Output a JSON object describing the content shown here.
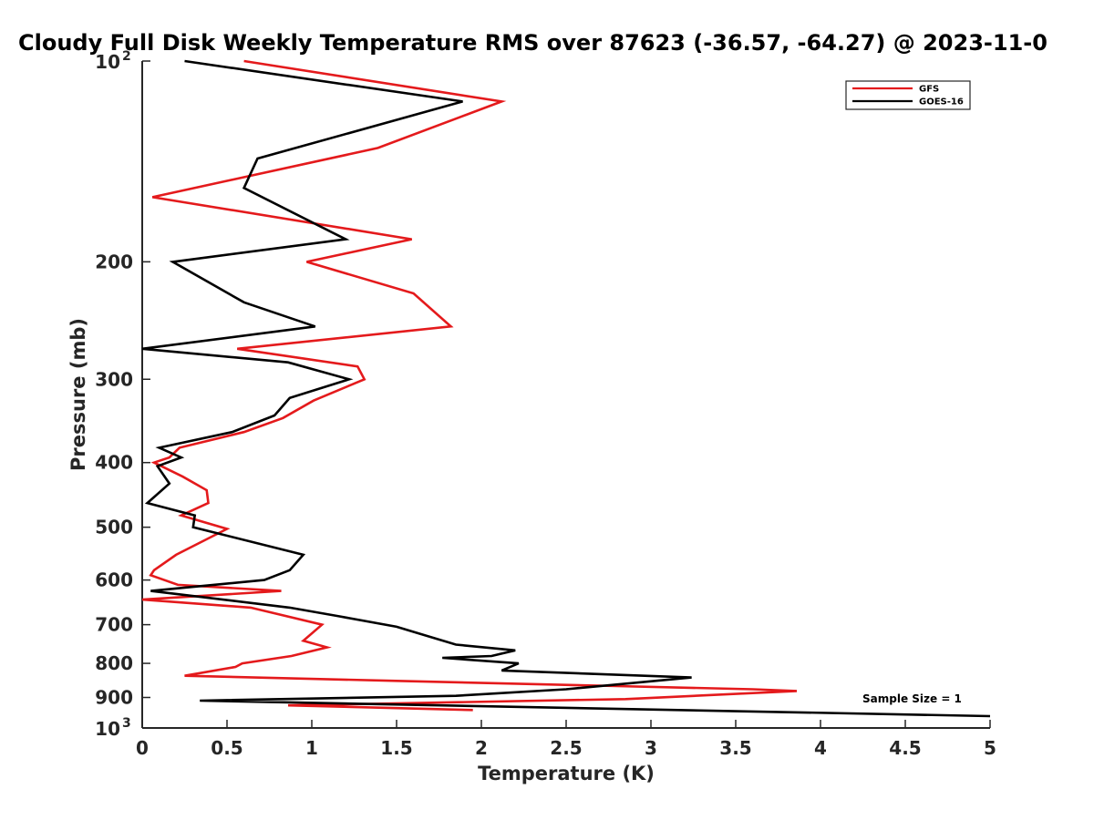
{
  "chart_data": {
    "type": "line",
    "title": "Cloudy Full Disk Weekly Temperature RMS over 87623 (-36.57, -64.27) @ 2023-11-0",
    "xlabel": "Temperature (K)",
    "ylabel": "Pressure (mb)",
    "xlim": [
      0,
      5
    ],
    "ylim": [
      100,
      1000
    ],
    "y_scale": "log",
    "y_reversed": true,
    "grid": false,
    "legend_position": "top-right",
    "x_ticks": [
      "0",
      "0.5",
      "1",
      "1.5",
      "2",
      "2.5",
      "3",
      "3.5",
      "4",
      "4.5",
      "5"
    ],
    "y_ticks": [
      {
        "value": 100,
        "base": "10",
        "exp": "2"
      },
      {
        "value": 200,
        "label": "200"
      },
      {
        "value": 300,
        "label": "300"
      },
      {
        "value": 400,
        "label": "400"
      },
      {
        "value": 500,
        "label": "500"
      },
      {
        "value": 600,
        "label": "600"
      },
      {
        "value": 700,
        "label": "700"
      },
      {
        "value": 800,
        "label": "800"
      },
      {
        "value": 900,
        "label": "900"
      },
      {
        "value": 1000,
        "base": "10",
        "exp": "3"
      }
    ],
    "annotation": "Sample Size = 1",
    "series": [
      {
        "name": "GFS",
        "color": "#e41a1c",
        "points": [
          [
            0.6,
            100
          ],
          [
            2.12,
            115
          ],
          [
            1.39,
            135
          ],
          [
            0.06,
            160
          ],
          [
            1.59,
            185
          ],
          [
            0.97,
            200
          ],
          [
            1.6,
            223
          ],
          [
            1.82,
            250
          ],
          [
            0.56,
            270
          ],
          [
            1.27,
            287
          ],
          [
            1.31,
            300
          ],
          [
            1.01,
            323
          ],
          [
            0.83,
            343
          ],
          [
            0.6,
            360
          ],
          [
            0.22,
            380
          ],
          [
            0.16,
            393
          ],
          [
            0.07,
            400
          ],
          [
            0.24,
            420
          ],
          [
            0.38,
            440
          ],
          [
            0.39,
            460
          ],
          [
            0.23,
            480
          ],
          [
            0.5,
            503
          ],
          [
            0.2,
            550
          ],
          [
            0.07,
            580
          ],
          [
            0.05,
            590
          ],
          [
            0.21,
            610
          ],
          [
            0.82,
            623
          ],
          [
            0.0,
            642
          ],
          [
            0.64,
            660
          ],
          [
            1.06,
            700
          ],
          [
            0.95,
            740
          ],
          [
            1.09,
            757
          ],
          [
            0.88,
            780
          ],
          [
            0.59,
            800
          ],
          [
            0.55,
            810
          ],
          [
            0.25,
            835
          ],
          [
            1.5,
            850
          ],
          [
            3.6,
            875
          ],
          [
            3.86,
            880
          ],
          [
            2.85,
            905
          ],
          [
            0.86,
            925
          ],
          [
            1.95,
            940
          ]
        ]
      },
      {
        "name": "GOES-16",
        "color": "#000000",
        "points": [
          [
            0.25,
            100
          ],
          [
            1.89,
            115
          ],
          [
            0.68,
            140
          ],
          [
            0.6,
            155
          ],
          [
            1.2,
            185
          ],
          [
            0.18,
            200
          ],
          [
            0.6,
            230
          ],
          [
            1.02,
            250
          ],
          [
            0.0,
            270
          ],
          [
            0.86,
            283
          ],
          [
            1.22,
            300
          ],
          [
            0.87,
            320
          ],
          [
            0.78,
            340
          ],
          [
            0.53,
            360
          ],
          [
            0.1,
            380
          ],
          [
            0.23,
            393
          ],
          [
            0.09,
            405
          ],
          [
            0.16,
            430
          ],
          [
            0.03,
            460
          ],
          [
            0.31,
            480
          ],
          [
            0.3,
            500
          ],
          [
            0.95,
            550
          ],
          [
            0.87,
            580
          ],
          [
            0.72,
            600
          ],
          [
            0.05,
            623
          ],
          [
            0.87,
            660
          ],
          [
            1.16,
            680
          ],
          [
            1.5,
            705
          ],
          [
            1.62,
            720
          ],
          [
            1.85,
            750
          ],
          [
            2.2,
            765
          ],
          [
            2.06,
            780
          ],
          [
            1.77,
            785
          ],
          [
            2.22,
            800
          ],
          [
            2.12,
            820
          ],
          [
            3.24,
            840
          ],
          [
            2.5,
            875
          ],
          [
            1.85,
            895
          ],
          [
            0.34,
            910
          ],
          [
            5.0,
            960
          ]
        ]
      }
    ]
  }
}
